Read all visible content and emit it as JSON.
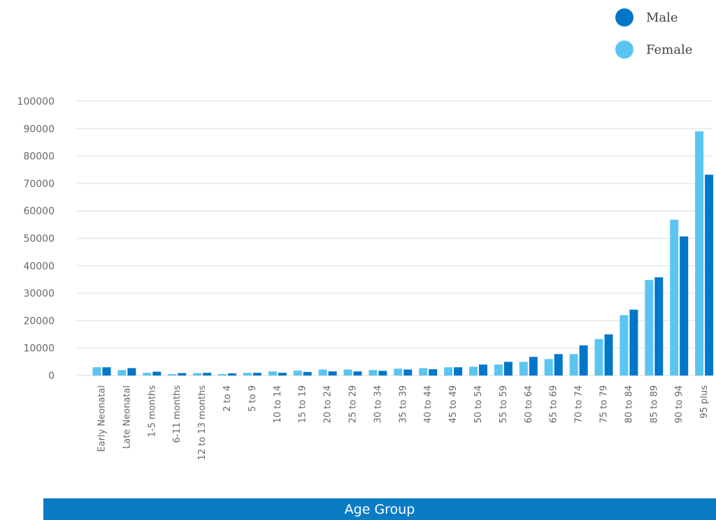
{
  "chart_data": {
    "type": "bar",
    "title": "",
    "xlabel": "Age Group",
    "ylabel": "",
    "ylim": [
      0,
      100000
    ],
    "yticks": [
      0,
      10000,
      20000,
      30000,
      40000,
      50000,
      60000,
      70000,
      80000,
      90000,
      100000
    ],
    "grid": true,
    "legend_position": "top-right",
    "categories": [
      "Early Neonatal",
      "Late Neonatal",
      "1-5 months",
      "6-11 months",
      "12 to 13 months",
      "2 to 4",
      "5 to 9",
      "10 to 14",
      "15 to 19",
      "20 to 24",
      "25 to 29",
      "30 to 34",
      "35 to 39",
      "40 to 44",
      "45 to 49",
      "50 to 54",
      "55 to 59",
      "60 to 64",
      "65 to 69",
      "70 to 74",
      "75 to 79",
      "80 to 84",
      "85 to 89",
      "90 to 94",
      "95 plus"
    ],
    "series": [
      {
        "name": "Female",
        "color": "#5bc5f2",
        "values": [
          3000,
          2000,
          1000,
          500,
          900,
          500,
          1000,
          1500,
          1800,
          2200,
          2200,
          2000,
          2500,
          2700,
          3000,
          3200,
          4000,
          5000,
          6000,
          7800,
          13300,
          22000,
          34800,
          56800,
          89000
        ]
      },
      {
        "name": "Male",
        "color": "#0077c8",
        "values": [
          3000,
          2700,
          1400,
          900,
          1000,
          800,
          1000,
          1000,
          1300,
          1500,
          1500,
          1700,
          2200,
          2300,
          3000,
          4000,
          5000,
          6800,
          7800,
          11000,
          15000,
          24000,
          35800,
          50700,
          73200
        ]
      }
    ]
  },
  "legend": [
    {
      "label": "Male",
      "color": "#0077c8"
    },
    {
      "label": "Female",
      "color": "#5bc5f2"
    }
  ],
  "xtitle_bar_color": "#0a7cc4"
}
